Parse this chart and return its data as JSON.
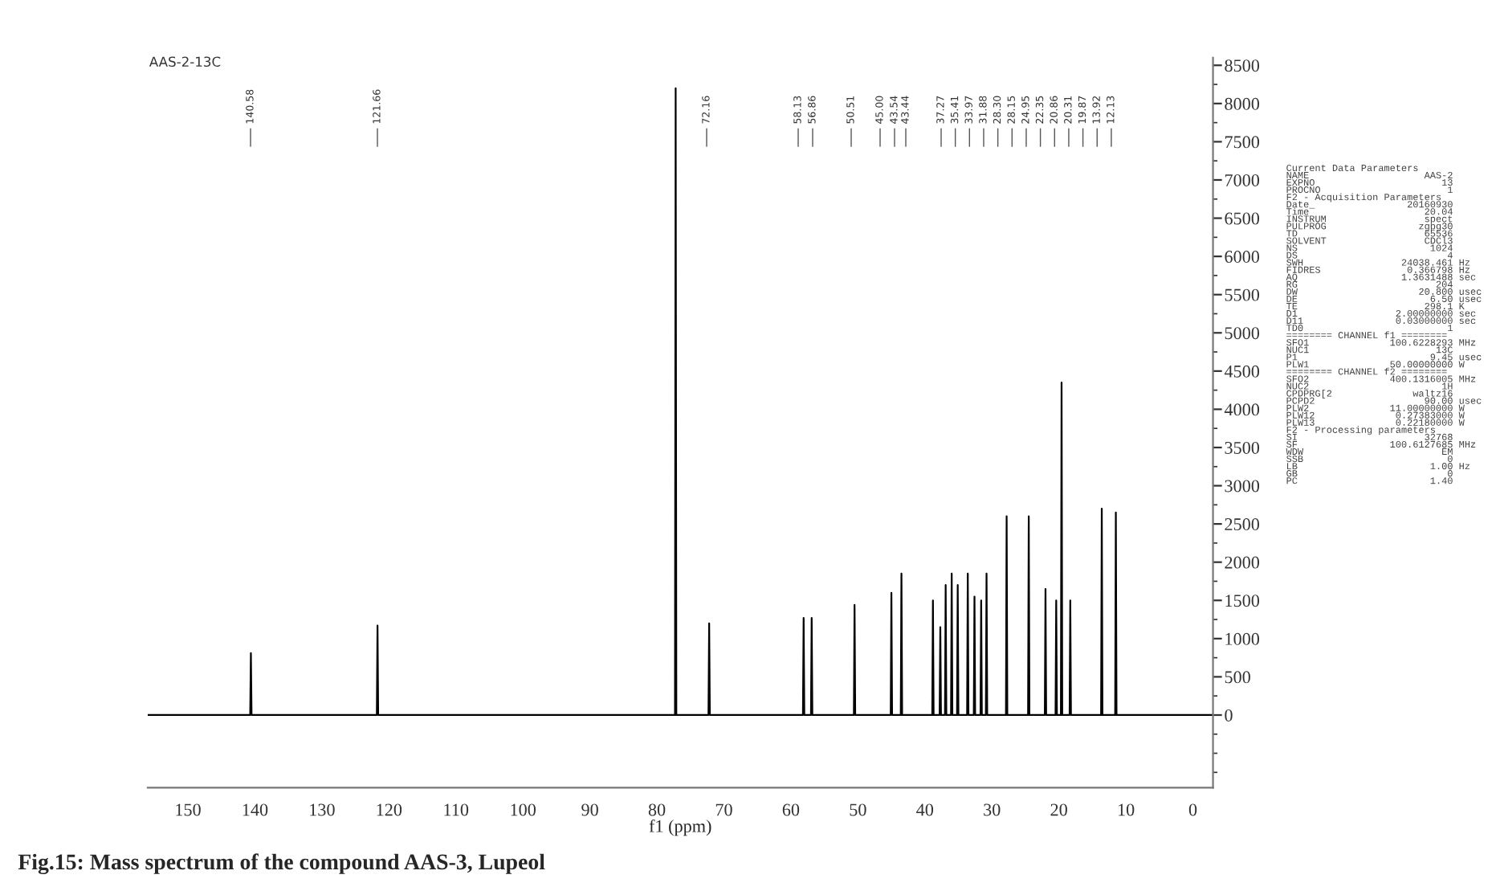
{
  "chart_data": {
    "type": "line",
    "title": "AAS-2-13C",
    "xlabel": "f1 (ppm)",
    "xlim": [
      156,
      -3
    ],
    "xticks": [
      150,
      140,
      130,
      120,
      110,
      100,
      90,
      80,
      70,
      60,
      50,
      40,
      30,
      20,
      10,
      0
    ],
    "ylim": [
      -950,
      8600
    ],
    "yticks": [
      0,
      500,
      1000,
      1500,
      2000,
      2500,
      3000,
      3500,
      4000,
      4500,
      5000,
      5500,
      6000,
      6500,
      7000,
      7500,
      8000,
      8500
    ],
    "grid": false,
    "legend": false,
    "marker": "none",
    "line_style": "solid",
    "series": [
      {
        "color": "#000000",
        "x": [
          156,
          140.7,
          140.6,
          140.5,
          121.8,
          121.7,
          121.6,
          77.3,
          77.2,
          77.1,
          72.3,
          72.2,
          72.1,
          58.2,
          58.1,
          58.0,
          57.0,
          56.9,
          56.8,
          50.6,
          50.5,
          50.4,
          45.1,
          45.0,
          44.9,
          43.6,
          43.5,
          43.4,
          38.9,
          38.8,
          38.7,
          37.8,
          37.7,
          37.6,
          37.0,
          36.9,
          36.8,
          36.1,
          36.0,
          35.9,
          35.2,
          35.1,
          35.0,
          33.7,
          33.6,
          33.5,
          32.7,
          32.6,
          32.5,
          31.7,
          31.6,
          31.5,
          30.9,
          30.8,
          30.7,
          27.9,
          27.8,
          27.7,
          24.6,
          24.5,
          24.4,
          22.1,
          22.0,
          21.9,
          20.5,
          20.4,
          20.3,
          19.7,
          19.6,
          19.5,
          18.4,
          18.3,
          18.2,
          13.7,
          13.6,
          13.5,
          11.6,
          11.5,
          11.4,
          -3
        ],
        "values": [
          0,
          0,
          810,
          0,
          0,
          1170,
          0,
          0,
          8200,
          0,
          0,
          1200,
          0,
          0,
          1270,
          0,
          0,
          1270,
          0,
          0,
          1440,
          0,
          0,
          1600,
          0,
          0,
          1850,
          0,
          0,
          1500,
          0,
          0,
          1150,
          0,
          0,
          1700,
          0,
          0,
          1850,
          0,
          0,
          1700,
          0,
          0,
          1850,
          0,
          0,
          1550,
          0,
          0,
          1500,
          0,
          0,
          1850,
          0,
          0,
          2600,
          0,
          0,
          2600,
          0,
          0,
          1650,
          0,
          0,
          1500,
          0,
          0,
          4350,
          0,
          0,
          1500,
          0,
          0,
          2700,
          0,
          0,
          2650,
          0,
          0
        ]
      }
    ],
    "annotations": [
      "Fig.15: Mass spectrum of the compound AAS-3, Lupeol",
      "140.58",
      "121.66",
      "72.16",
      "58.13",
      "56.86",
      "50.51",
      "45.00",
      "43.54",
      "43.44",
      "37.27",
      "35.41",
      "33.97",
      "31.88",
      "28.30",
      "28.15",
      "24.95",
      "22.35",
      "20.86",
      "20.31",
      "19.87",
      "13.92",
      "12.13",
      "Current Data Parameters",
      "NAME                    AAS-2",
      "EXPNO                      13",
      "PROCNO                      1",
      "F2 - Acquisition Parameters",
      "Date_                20160930",
      "Time                    20.04",
      "INSTRUM                 spect",
      "PULPROG                zgpg30",
      "TD                      65536",
      "SOLVENT                 CDCl3",
      "NS                       1024",
      "DS                          4",
      "SWH                 24038.461 Hz",
      "FIDRES               0.366798 Hz",
      "AQ                  1.3631488 sec",
      "RG                        204",
      "DW                     20.800 usec",
      "DE                       6.50 usec",
      "TE                      298.1 K",
      "D1                 2.00000000 sec",
      "D11                0.03000000 sec",
      "TD0                         1",
      "======== CHANNEL f1 ========",
      "SFO1              100.6228293 MHz",
      "NUC1                      13C",
      "P1                       9.45 usec",
      "PLW1              50.00000000 W",
      "======== CHANNEL f2 ========",
      "SFO2              400.1316005 MHz",
      "NUC2                       1H",
      "CPDPRG[2              waltz16",
      "PCPD2                   90.00 usec",
      "PLW2              11.00000000 W",
      "PLW12              0.27383000 W",
      "PLW13              0.22180000 W",
      "F2 - Processing parameters",
      "SI                      32768",
      "SF                100.6127685 MHz",
      "WDW                        EM",
      "SSB                         0",
      "LB                       1.00 Hz",
      "GB                          0",
      "PC                       1.40"
    ]
  }
}
